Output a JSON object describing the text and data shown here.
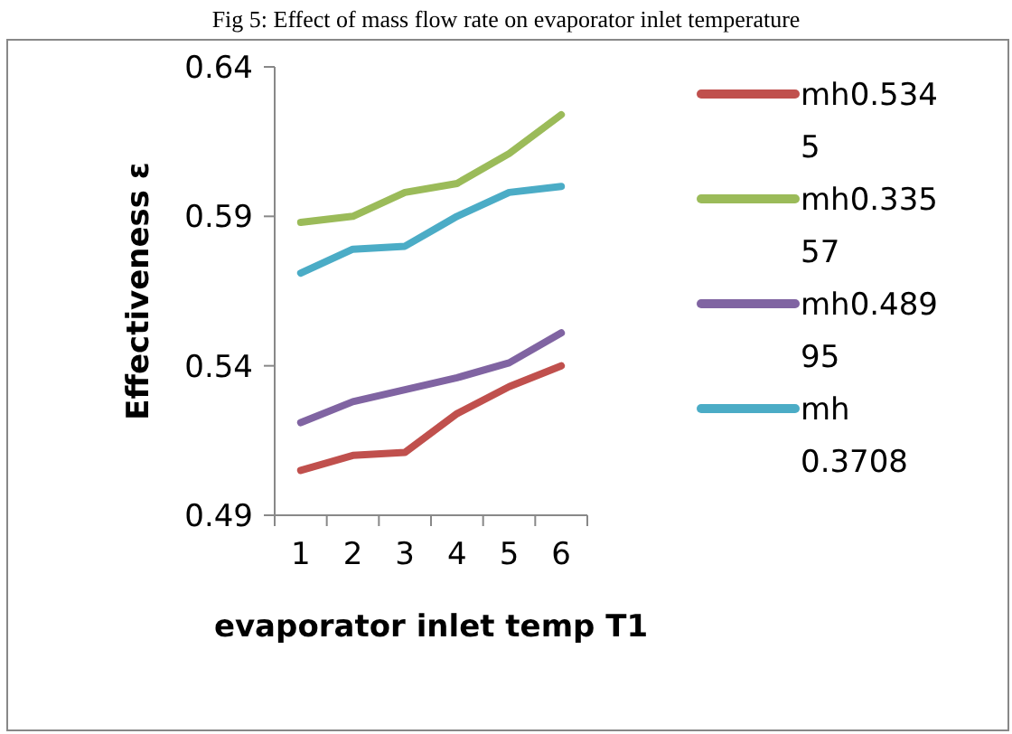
{
  "chart_data": {
    "type": "line",
    "title": "Fig 5: Effect of mass flow rate on evaporator inlet temperature",
    "xlabel": "evaporator inlet temp T1",
    "ylabel": "Effectiveness ε",
    "categories": [
      "1",
      "2",
      "3",
      "4",
      "5",
      "6"
    ],
    "ylim": [
      0.49,
      0.64
    ],
    "yticks": [
      0.49,
      0.54,
      0.59,
      0.64
    ],
    "grid": false,
    "legend": "right",
    "marker": "none",
    "series": [
      {
        "name": "mh0.5345",
        "color": "#c0504d",
        "values": [
          0.505,
          0.51,
          0.511,
          0.524,
          0.533,
          0.54
        ]
      },
      {
        "name": "mh0.33557",
        "color": "#9bbb59",
        "values": [
          0.588,
          0.59,
          0.598,
          0.601,
          0.611,
          0.624
        ]
      },
      {
        "name": "mh0.48995",
        "color": "#8064a2",
        "values": [
          0.521,
          0.528,
          0.532,
          0.536,
          0.541,
          0.551
        ]
      },
      {
        "name": "mh 0.3708",
        "color": "#4bacc6",
        "values": [
          0.571,
          0.579,
          0.58,
          0.59,
          0.598,
          0.6
        ]
      }
    ]
  }
}
